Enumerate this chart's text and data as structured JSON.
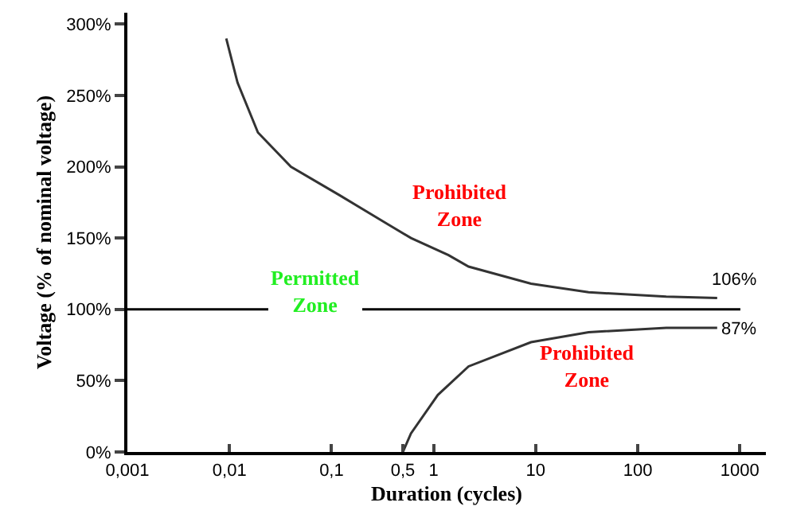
{
  "chart_data": {
    "type": "line",
    "xlabel": "Duration (cycles)",
    "ylabel": "Voltage (% of nominal voltage)",
    "log": "x",
    "xlim": [
      0.001,
      1800
    ],
    "xticks": [
      {
        "value": 0.001,
        "label": "0,001"
      },
      {
        "value": 0.01,
        "label": "0,01"
      },
      {
        "value": 0.1,
        "label": "0,1"
      },
      {
        "value": 0.5,
        "label": "0,5"
      },
      1,
      10,
      100,
      1000
    ],
    "ylim": [
      0,
      308
    ],
    "yticks": [
      {
        "value": 0,
        "label": "0%"
      },
      {
        "value": 50,
        "label": "50%"
      },
      {
        "value": 100,
        "label": "100%"
      },
      {
        "value": 150,
        "label": "150%"
      },
      {
        "value": 200,
        "label": "200%"
      },
      {
        "value": 250,
        "label": "250%"
      },
      {
        "value": 300,
        "label": "300%"
      }
    ],
    "series": [
      {
        "color": "#333333",
        "x": [
          0.0093,
          0.012,
          0.019,
          0.04,
          0.12,
          0.35,
          0.6,
          1.4,
          2.2,
          9,
          33,
          190,
          600
        ],
        "values": [
          290,
          259,
          224,
          200,
          180,
          160,
          150,
          138,
          130,
          118,
          112,
          109,
          108
        ]
      },
      {
        "color": "#333333",
        "x": [
          0.5,
          0.6,
          1.1,
          2.2,
          9,
          33,
          190,
          600
        ],
        "values": [
          0,
          13,
          40,
          60,
          77,
          84,
          87,
          87
        ]
      }
    ],
    "ref_lines": [
      {
        "axis": "y",
        "value": 100,
        "color": "#000000"
      }
    ],
    "annotations": [
      "Prohibited Zone",
      "Permitted Zone",
      "Prohibited Zone",
      "106%",
      "87%"
    ],
    "grid": false,
    "marker": "none",
    "line_style": "solid"
  }
}
